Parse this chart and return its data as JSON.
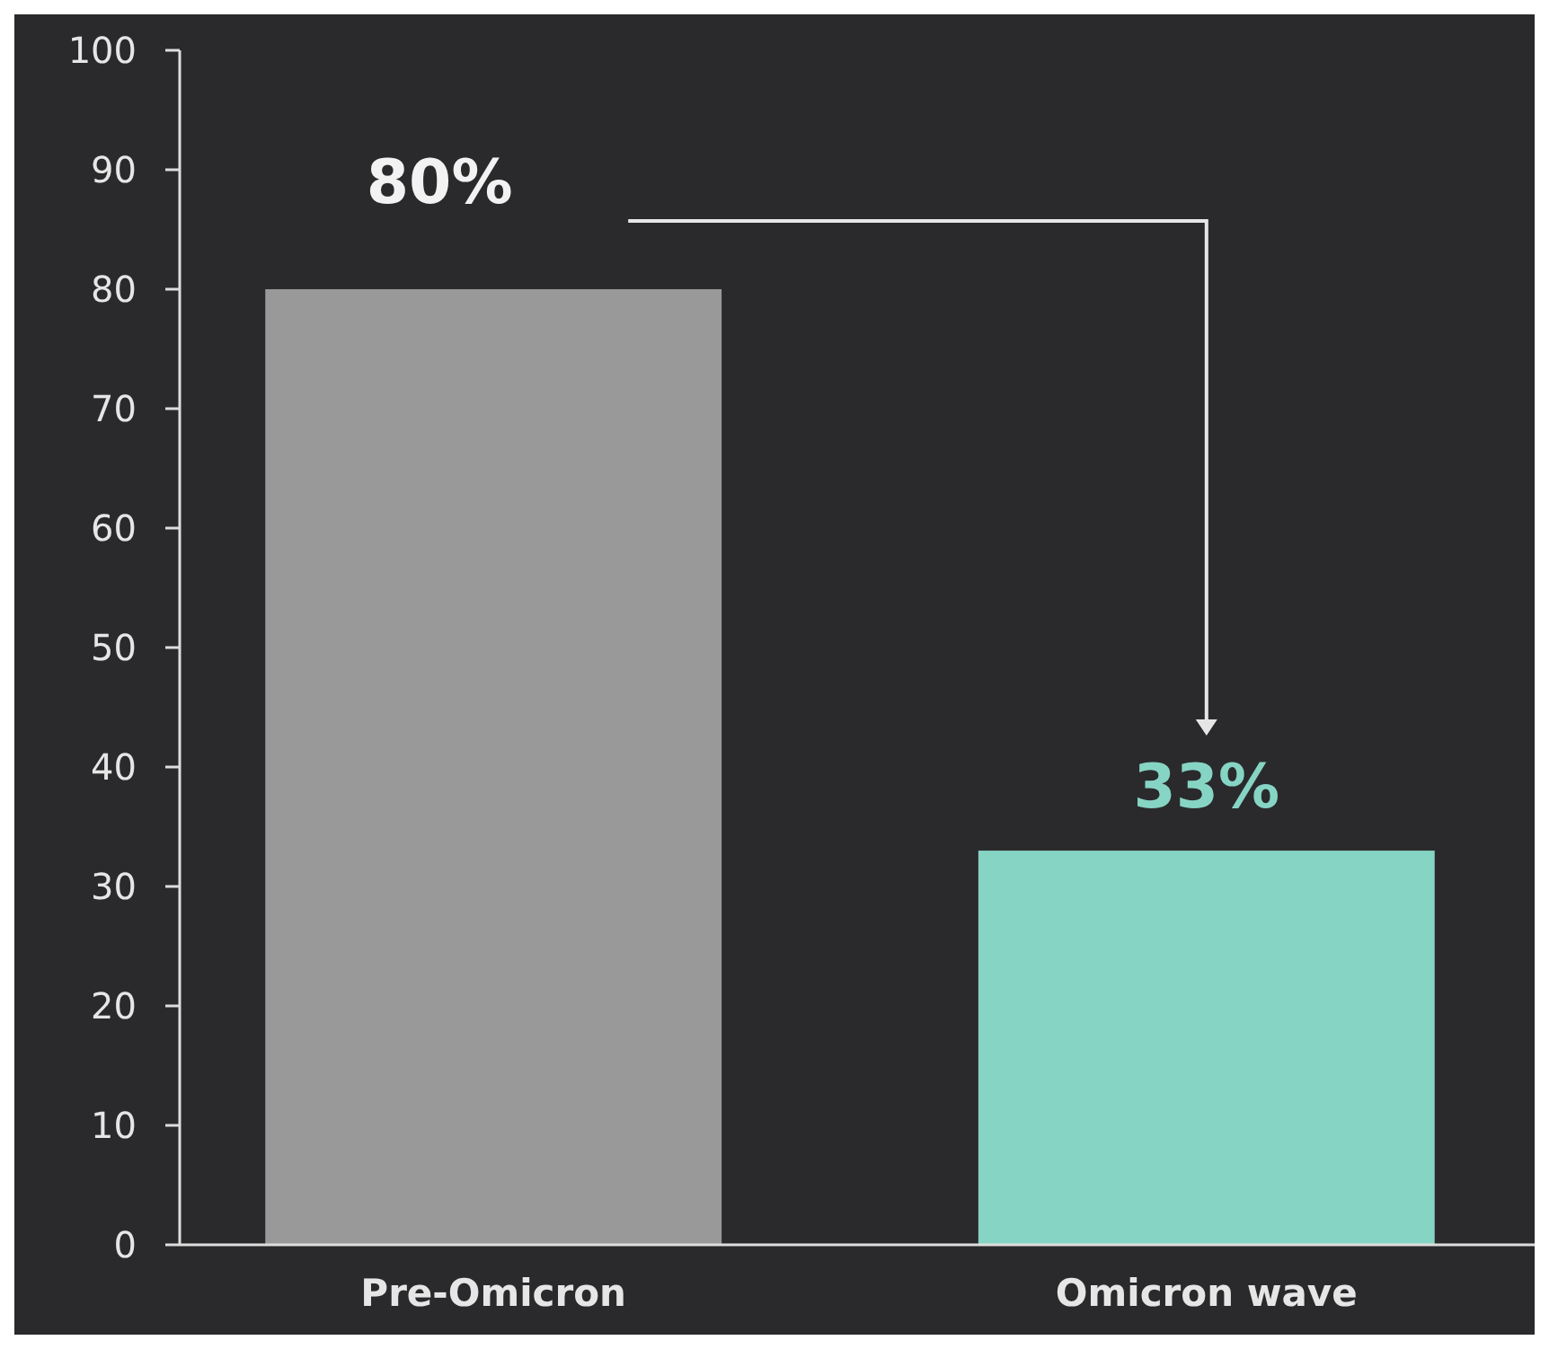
{
  "chart_data": {
    "type": "bar",
    "categories": [
      "Pre-Omicron",
      "Omicron wave"
    ],
    "values": [
      80,
      33
    ],
    "colors": [
      "#999999",
      "#86d4c4"
    ],
    "value_labels": [
      "80%",
      "33%"
    ],
    "ylim": [
      0,
      100
    ],
    "yticks": [
      0,
      10,
      20,
      30,
      40,
      50,
      60,
      70,
      80,
      90,
      100
    ],
    "grid": false
  }
}
